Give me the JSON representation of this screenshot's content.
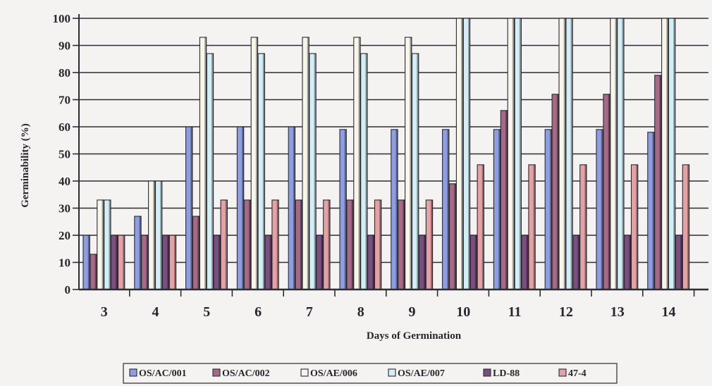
{
  "chart_data": {
    "type": "bar",
    "title": "",
    "xlabel": "Days of Germination",
    "ylabel": "Germinability (%)",
    "ylim": [
      0,
      100
    ],
    "yticks": [
      "0",
      "10",
      "20",
      "30",
      "40",
      "50",
      "60",
      "70",
      "80",
      "90",
      "100"
    ],
    "grid": true,
    "legend_position": "bottom",
    "categories": [
      "3",
      "4",
      "5",
      "6",
      "7",
      "8",
      "9",
      "10",
      "11",
      "12",
      "13",
      "14"
    ],
    "series": [
      {
        "name": "OS/AC/001",
        "color": "#8f9ee0",
        "values": [
          20,
          27,
          60,
          60,
          60,
          59,
          59,
          59,
          59,
          59,
          59,
          58
        ]
      },
      {
        "name": "OS/AC/002",
        "color": "#a46a86",
        "values": [
          13,
          20,
          27,
          33,
          33,
          33,
          33,
          39,
          66,
          72,
          72,
          79
        ]
      },
      {
        "name": "OS/AE/006",
        "color": "#f8f5ea",
        "values": [
          33,
          40,
          93,
          93,
          93,
          93,
          93,
          100,
          100,
          100,
          100,
          100
        ]
      },
      {
        "name": "OS/AE/007",
        "color": "#d4eef5",
        "values": [
          33,
          40,
          87,
          87,
          87,
          87,
          87,
          100,
          100,
          100,
          100,
          100
        ]
      },
      {
        "name": "LD-88",
        "color": "#7a4e7e",
        "values": [
          20,
          20,
          20,
          20,
          20,
          20,
          20,
          20,
          20,
          20,
          20,
          20
        ]
      },
      {
        "name": "47-4",
        "color": "#e3a2a6",
        "values": [
          20,
          20,
          33,
          33,
          33,
          33,
          33,
          46,
          46,
          46,
          46,
          46
        ]
      }
    ]
  }
}
